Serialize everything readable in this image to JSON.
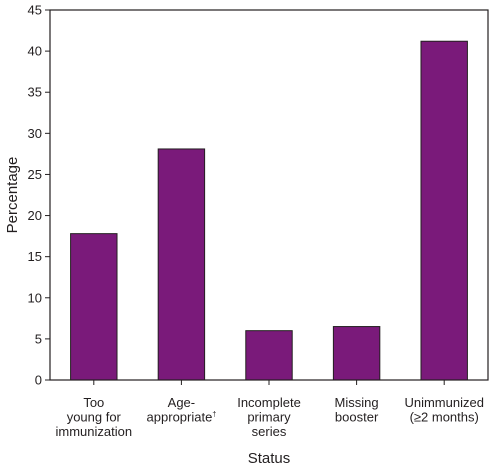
{
  "chart_data": {
    "type": "bar",
    "title": "",
    "xlabel": "Status",
    "ylabel": "Percentage",
    "ylim": [
      0,
      45
    ],
    "yticks": [
      0,
      5,
      10,
      15,
      20,
      25,
      30,
      35,
      40,
      45
    ],
    "grid": false,
    "legend": "none",
    "bar_color": "#7a1a7a",
    "categories": [
      {
        "lines": [
          "Too",
          "young for",
          "immunization"
        ],
        "superscript": ""
      },
      {
        "lines": [
          "Age-",
          "appropriate"
        ],
        "superscript": "†"
      },
      {
        "lines": [
          "Incomplete",
          "primary",
          "series"
        ],
        "superscript": ""
      },
      {
        "lines": [
          "Missing",
          "booster"
        ],
        "superscript": ""
      },
      {
        "lines": [
          "Unimmunized",
          "(≥2 months)"
        ],
        "superscript": ""
      }
    ],
    "values": [
      17.8,
      28.1,
      6.0,
      6.5,
      41.2
    ]
  }
}
